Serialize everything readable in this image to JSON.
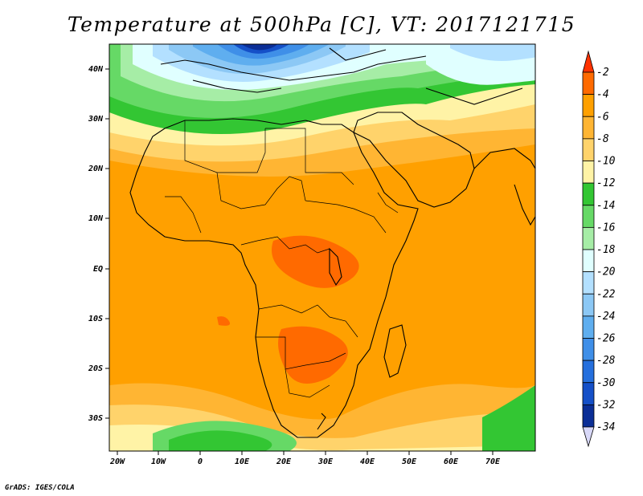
{
  "title": "Temperature at 500hPa [C], VT: 2017121715",
  "footer": "GrADS: IGES/COLA",
  "lat_ticks": [
    "40N",
    "30N",
    "20N",
    "10N",
    "EQ",
    "10S",
    "20S",
    "30S"
  ],
  "lon_ticks": [
    "20W",
    "10W",
    "0",
    "10E",
    "20E",
    "30E",
    "40E",
    "50E",
    "60E",
    "70E"
  ],
  "colorbar": {
    "labels": [
      "-2",
      "-4",
      "-6",
      "-8",
      "-10",
      "-12",
      "-14",
      "-16",
      "-18",
      "-20",
      "-22",
      "-24",
      "-26",
      "-28",
      "-30",
      "-32",
      "-34"
    ],
    "colors": [
      "#ff3200",
      "#ff6a00",
      "#ffa000",
      "#ffb533",
      "#ffd36b",
      "#fff3a6",
      "#33c633",
      "#66d966",
      "#a6eda6",
      "#e0ffff",
      "#b3e0ff",
      "#8cc8f5",
      "#5faeef",
      "#3f8fe8",
      "#256fdd",
      "#1550c8",
      "#0b2e96",
      "#071a5e",
      "#d8d8f8"
    ]
  },
  "chart_data": {
    "type": "heatmap",
    "title": "Temperature at 500hPa [C], VT: 2017121715",
    "x_range": [
      "22W",
      "80E"
    ],
    "y_range": [
      "37S",
      "45N"
    ],
    "x_ticks": [
      "20W",
      "10W",
      "0",
      "10E",
      "20E",
      "30E",
      "40E",
      "50E",
      "60E",
      "70E"
    ],
    "y_ticks": [
      "40N",
      "30N",
      "20N",
      "10N",
      "EQ",
      "10S",
      "20S",
      "30S"
    ],
    "levels": [
      -34,
      -32,
      -30,
      -28,
      -26,
      -24,
      -22,
      -20,
      -18,
      -16,
      -14,
      -12,
      -10,
      -8,
      -6,
      -4,
      -2
    ]
  }
}
